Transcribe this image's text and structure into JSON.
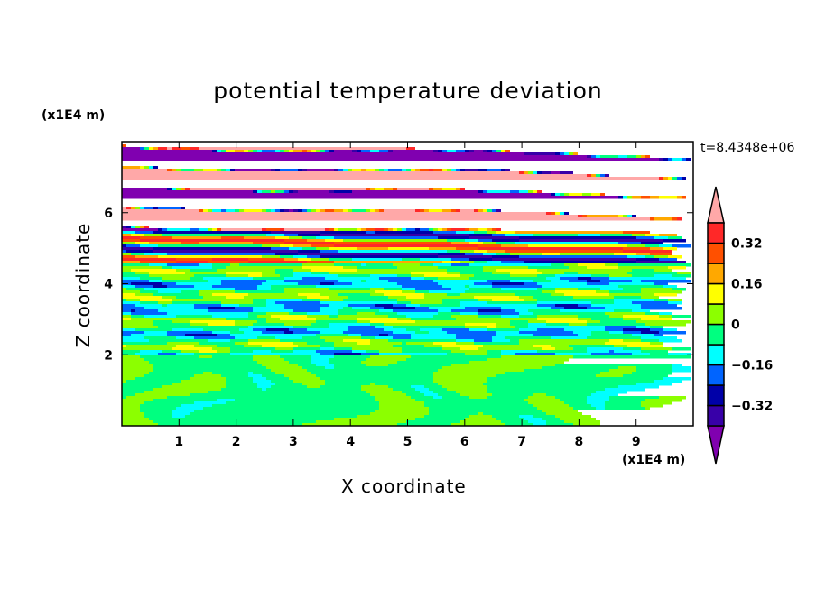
{
  "chart_data": {
    "type": "heatmap",
    "title": "potential temperature deviation",
    "xlabel": "X coordinate",
    "ylabel": "Z coordinate",
    "x_unit": "(x1E4 m)",
    "y_unit": "(x1E4 m)",
    "time_label": "t=8.4348e+06",
    "xlim": [
      0,
      10
    ],
    "ylim": [
      0,
      8
    ],
    "x_ticks": [
      "1",
      "2",
      "3",
      "4",
      "5",
      "6",
      "7",
      "8",
      "9"
    ],
    "y_ticks": [
      "2",
      "4",
      "6"
    ],
    "levels": [
      -0.4,
      -0.32,
      -0.24,
      -0.16,
      -0.08,
      0,
      0.08,
      0.16,
      0.24,
      0.32,
      0.4
    ],
    "colorbar_labels": [
      "0.32",
      "0.16",
      "0",
      "−0.16",
      "−0.32"
    ],
    "colorbar_label_values": [
      0.32,
      0.16,
      0,
      -0.16,
      -0.32
    ],
    "colors": [
      "#8000b0",
      "#3800a8",
      "#0000a8",
      "#0064ff",
      "#00ffff",
      "#00ff80",
      "#8cff00",
      "#ffff00",
      "#ffa800",
      "#ff5000",
      "#ff2828",
      "#ffa8a8"
    ],
    "field_summary": [
      {
        "z_range": [
          0,
          2
        ],
        "description": "green/lime (about -0.08 to 0.08)"
      },
      {
        "z_range": [
          2,
          4.6
        ],
        "description": "mixed cyan, green, lime, yellow, orange layers"
      },
      {
        "z_range": [
          4.6,
          5.5
        ],
        "description": "red, orange and blue layers"
      },
      {
        "z_range": [
          5.5,
          8
        ],
        "description": "alternating pink (>0.4) and purple (<-0.4) layers"
      }
    ]
  }
}
